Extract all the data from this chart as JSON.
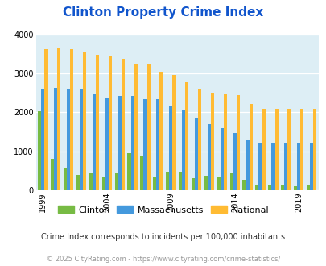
{
  "title": "Clinton Property Crime Index",
  "subtitle": "Crime Index corresponds to incidents per 100,000 inhabitants",
  "footer": "© 2025 CityRating.com - https://www.cityrating.com/crime-statistics/",
  "years": [
    1999,
    2000,
    2001,
    2002,
    2003,
    2004,
    2005,
    2006,
    2007,
    2008,
    2009,
    2010,
    2011,
    2012,
    2013,
    2014,
    2015,
    2016,
    2017,
    2018,
    2019,
    2020
  ],
  "clinton": [
    2020,
    800,
    580,
    390,
    430,
    340,
    430,
    960,
    870,
    340,
    450,
    450,
    300,
    370,
    340,
    430,
    270,
    140,
    140,
    115,
    100,
    120
  ],
  "massachusetts": [
    2580,
    2640,
    2600,
    2590,
    2480,
    2390,
    2420,
    2420,
    2330,
    2350,
    2160,
    2060,
    1870,
    1700,
    1590,
    1480,
    1290,
    1200,
    1200,
    1200,
    1200,
    1200
  ],
  "national": [
    3620,
    3660,
    3620,
    3560,
    3480,
    3440,
    3380,
    3250,
    3250,
    3050,
    2960,
    2770,
    2600,
    2500,
    2460,
    2450,
    2210,
    2100,
    2100,
    2100,
    2100,
    2100
  ],
  "clinton_color": "#77bb44",
  "massachusetts_color": "#4499dd",
  "national_color": "#ffbb33",
  "bg_color": "#ddeef5",
  "ylim": [
    0,
    4000
  ],
  "yticks": [
    0,
    1000,
    2000,
    3000,
    4000
  ],
  "xtick_years": [
    1999,
    2004,
    2009,
    2014,
    2019
  ],
  "title_color": "#1155cc",
  "subtitle_color": "#333333",
  "footer_color": "#999999",
  "title_fontsize": 11,
  "legend_fontsize": 8,
  "subtitle_fontsize": 7,
  "footer_fontsize": 6,
  "ytick_fontsize": 7,
  "xtick_fontsize": 7
}
